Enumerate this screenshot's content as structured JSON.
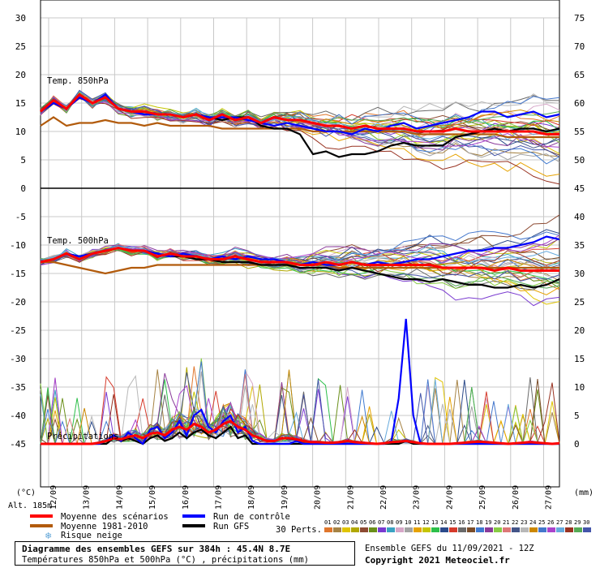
{
  "chart_data": {
    "type": "line",
    "panels": [
      {
        "label": "Temp. 850hPa",
        "left_ylim": [
          0,
          30
        ],
        "right_ylim": [
          45,
          75
        ]
      },
      {
        "label": "Temp. 500hPa",
        "left_ylim": [
          -45,
          0
        ],
        "right_ylim": [
          0,
          45
        ]
      },
      {
        "label": "Précipitations"
      }
    ],
    "left_ticks": [
      "30",
      "25",
      "20",
      "15",
      "10",
      "5",
      "0",
      "-5",
      "-10",
      "-15",
      "-20",
      "-25",
      "-30",
      "-35",
      "-40",
      "-45"
    ],
    "right_ticks": [
      "75",
      "70",
      "65",
      "60",
      "55",
      "50",
      "45",
      "40",
      "35",
      "30",
      "25",
      "20",
      "15",
      "10",
      "5",
      "0"
    ],
    "left_unit": "(°C)",
    "right_unit": "(mm)",
    "x_ticks": [
      "12/09",
      "13/09",
      "14/09",
      "15/09",
      "16/09",
      "17/09",
      "18/09",
      "19/09",
      "20/09",
      "21/09",
      "22/09",
      "23/09",
      "24/09",
      "25/09",
      "26/09",
      "27/09"
    ],
    "altitude": "Alt. 185m",
    "series_t850": {
      "mean": [
        13.5,
        15.5,
        14.0,
        16.5,
        15.0,
        16.0,
        14.0,
        13.5,
        13.5,
        13.0,
        13.0,
        12.5,
        13.0,
        12.0,
        13.0,
        12.0,
        12.5,
        11.5,
        12.5,
        12.0,
        12.0,
        11.5,
        11.0,
        11.0,
        10.5,
        11.0,
        10.5,
        10.5,
        10.5,
        10.0,
        10.0,
        10.0,
        10.5,
        10.0,
        10.0,
        10.0,
        10.0,
        10.0,
        10.0,
        9.5,
        9.5
      ],
      "clim": [
        11.0,
        12.5,
        11.0,
        11.5,
        11.5,
        12.0,
        11.5,
        11.5,
        11.0,
        11.5,
        11.0,
        11.0,
        11.0,
        11.0,
        10.5,
        10.5,
        10.5,
        10.5,
        10.5,
        10.5,
        10.5,
        10.0,
        10.0,
        10.0,
        10.0,
        10.0,
        10.0,
        10.0,
        10.0,
        9.5,
        9.5,
        9.5,
        9.5,
        9.5,
        9.5,
        9.5,
        9.0,
        9.0,
        9.0,
        9.0,
        9.0
      ],
      "control": [
        13.5,
        15.0,
        14.0,
        16.0,
        15.0,
        16.5,
        14.0,
        13.5,
        13.0,
        13.0,
        13.0,
        12.5,
        13.0,
        12.5,
        12.5,
        12.5,
        12.0,
        11.5,
        11.0,
        11.5,
        11.0,
        10.5,
        10.0,
        10.0,
        9.5,
        10.5,
        10.0,
        11.0,
        11.5,
        10.5,
        11.0,
        11.5,
        12.0,
        12.5,
        13.5,
        13.5,
        12.5,
        13.0,
        13.5,
        12.5,
        13.0
      ],
      "gfs": [
        13.5,
        15.0,
        14.0,
        16.5,
        15.0,
        16.0,
        14.0,
        13.5,
        13.5,
        13.0,
        13.0,
        12.5,
        13.0,
        12.5,
        12.0,
        12.5,
        12.5,
        11.0,
        10.5,
        10.5,
        9.5,
        6.0,
        6.5,
        5.5,
        6.0,
        6.0,
        6.5,
        7.5,
        8.0,
        7.5,
        7.5,
        7.5,
        9.0,
        9.5,
        10.0,
        10.5,
        10.0,
        10.5,
        10.5,
        10.0,
        10.5
      ]
    },
    "series_t500": {
      "mean": [
        -13.0,
        -12.5,
        -11.5,
        -12.5,
        -11.5,
        -11.0,
        -10.5,
        -11.0,
        -11.0,
        -12.0,
        -11.5,
        -12.0,
        -12.0,
        -12.5,
        -12.5,
        -12.0,
        -12.5,
        -13.0,
        -13.0,
        -13.0,
        -13.5,
        -13.5,
        -13.0,
        -13.5,
        -13.0,
        -13.5,
        -13.5,
        -13.5,
        -13.5,
        -13.5,
        -13.5,
        -14.0,
        -14.0,
        -14.0,
        -14.0,
        -14.5,
        -14.0,
        -14.5,
        -14.5,
        -14.5,
        -14.5
      ],
      "clim": [
        -13.0,
        -13.0,
        -13.5,
        -14.0,
        -14.5,
        -15.0,
        -14.5,
        -14.0,
        -14.0,
        -13.5,
        -13.5,
        -13.5,
        -13.5,
        -13.5,
        -13.5,
        -13.5,
        -13.5,
        -13.5,
        -13.5,
        -13.5,
        -13.5,
        -13.5,
        -13.5,
        -14.0,
        -14.0,
        -14.0,
        -14.0,
        -14.0,
        -14.0,
        -14.0,
        -14.0,
        -14.0,
        -14.0,
        -14.0,
        -14.0,
        -14.0,
        -14.0,
        -14.0,
        -14.0,
        -14.0,
        -14.0
      ],
      "control": [
        -13.0,
        -12.5,
        -11.5,
        -12.0,
        -11.5,
        -11.0,
        -10.5,
        -11.0,
        -11.0,
        -11.5,
        -12.0,
        -11.5,
        -12.0,
        -12.5,
        -12.0,
        -12.5,
        -12.0,
        -12.5,
        -12.5,
        -13.0,
        -13.5,
        -13.0,
        -13.5,
        -13.5,
        -13.0,
        -13.5,
        -13.0,
        -13.5,
        -13.0,
        -12.5,
        -12.5,
        -12.0,
        -11.5,
        -11.0,
        -11.0,
        -10.5,
        -10.5,
        -10.0,
        -9.5,
        -8.5,
        -9.0
      ],
      "gfs": [
        -13.0,
        -12.5,
        -11.5,
        -12.0,
        -11.5,
        -11.0,
        -10.5,
        -11.0,
        -11.0,
        -11.5,
        -12.0,
        -12.0,
        -12.5,
        -12.5,
        -13.0,
        -13.0,
        -13.0,
        -13.5,
        -13.5,
        -13.5,
        -14.0,
        -14.0,
        -14.0,
        -14.5,
        -14.0,
        -14.5,
        -15.0,
        -15.5,
        -16.0,
        -16.0,
        -16.5,
        -16.0,
        -16.5,
        -17.0,
        -17.0,
        -17.5,
        -17.5,
        -17.0,
        -17.5,
        -17.0,
        -16.0
      ]
    },
    "series_precip_mm": {
      "mean": [
        0,
        0,
        0,
        0,
        0,
        0,
        0,
        0,
        0.2,
        0.5,
        1.0,
        0.8,
        1.2,
        1.5,
        1.0,
        1.8,
        2.0,
        1.5,
        2.5,
        3.0,
        2.5,
        3.5,
        3.0,
        2.0,
        2.5,
        3.5,
        4.0,
        3.0,
        2.5,
        1.5,
        1.0,
        0.5,
        0.5,
        1.0,
        1.0,
        0.8,
        0.5,
        0.3,
        0.3,
        0.2,
        0.2,
        0.3,
        0.5,
        0.3,
        0.2,
        0.1,
        0,
        0.1,
        0.3,
        0.4,
        0.5,
        0.3,
        0.1,
        0,
        0,
        0,
        0,
        0.1,
        0.2,
        0.3,
        0.4,
        0.3,
        0.2,
        0.1,
        0,
        0.1,
        0.2,
        0.3,
        0.2,
        0.1,
        0,
        0.1
      ],
      "control": [
        0,
        0,
        0,
        0,
        0,
        0,
        0,
        0,
        0,
        0.5,
        1.5,
        0.5,
        2.0,
        1.0,
        0,
        2.5,
        3.0,
        1.0,
        2.0,
        4.0,
        1.5,
        5.0,
        6.0,
        3.0,
        2.0,
        4.0,
        5.0,
        2.0,
        3.0,
        0.5,
        0,
        0,
        0,
        0,
        0,
        0.5,
        0,
        0,
        0,
        0,
        0,
        0,
        0,
        0,
        0,
        0,
        0,
        0,
        0.5,
        8.0,
        22.0,
        5.0,
        0,
        0,
        0,
        0,
        0,
        0,
        0,
        0,
        0,
        0,
        0,
        0,
        0,
        0,
        0,
        0,
        0,
        0,
        0,
        0
      ],
      "gfs": [
        0,
        0,
        0,
        0,
        0,
        0,
        0,
        0,
        0,
        0,
        1.0,
        0.5,
        1.0,
        0.5,
        0,
        1.0,
        1.5,
        0.5,
        1.0,
        2.0,
        1.0,
        2.0,
        2.5,
        1.5,
        1.0,
        2.0,
        3.0,
        1.0,
        1.5,
        0,
        0,
        0,
        0,
        0,
        0,
        0,
        0,
        0,
        0,
        0,
        0,
        0,
        0,
        0,
        0,
        0,
        0,
        0,
        0,
        0,
        0.5,
        0,
        0,
        0,
        0,
        0,
        0,
        0,
        0,
        0,
        0,
        0,
        0,
        0,
        0,
        0,
        0,
        0,
        0,
        0,
        0,
        0
      ]
    }
  },
  "legend": {
    "mean": {
      "label": "Moyenne des scénarios",
      "color": "#ff0000"
    },
    "clim": {
      "label": "Moyenne 1981-2010",
      "color": "#b25b0c"
    },
    "control": {
      "label": "Run de contrôle",
      "color": "#0000ff"
    },
    "gfs": {
      "label": "Run GFS",
      "color": "#000000"
    },
    "snow": {
      "label": "Risque neige",
      "color": "#62a6d8"
    },
    "perts_label": "30 Perts.",
    "pert_numbers": [
      "01",
      "02",
      "03",
      "04",
      "05",
      "06",
      "07",
      "08",
      "09",
      "10",
      "11",
      "12",
      "13",
      "14",
      "15",
      "16",
      "17",
      "18",
      "19",
      "20",
      "21",
      "22",
      "23",
      "24",
      "25",
      "26",
      "27",
      "28",
      "29",
      "30"
    ],
    "pert_colors": [
      "#e0762c",
      "#a68344",
      "#e0c400",
      "#b1a800",
      "#8d4a32",
      "#6a8f1a",
      "#7a3ad0",
      "#3aa2c2",
      "#d6a7c8",
      "#a3a3a3",
      "#e6a200",
      "#c5c500",
      "#2dbf4a",
      "#2b4a8a",
      "#d63a2b",
      "#6a6a6a",
      "#7b4d2a",
      "#3f7ad0",
      "#8a3a9a",
      "#88cc44",
      "#dd7777",
      "#445588",
      "#b8b8b8",
      "#cc8800",
      "#4477cc",
      "#aa44cc",
      "#66aadd",
      "#993322",
      "#55aa55",
      "#4455aa"
    ]
  },
  "info": {
    "title": "Diagramme des ensembles GEFS sur 384h : 45.4N 8.7E",
    "subtitle": "Températures 850hPa et 500hPa (°C) , précipitations (mm)",
    "run": "Ensemble GEFS du 11/09/2021 - 12Z",
    "copyright": "Copyright 2021 Meteociel.fr"
  }
}
